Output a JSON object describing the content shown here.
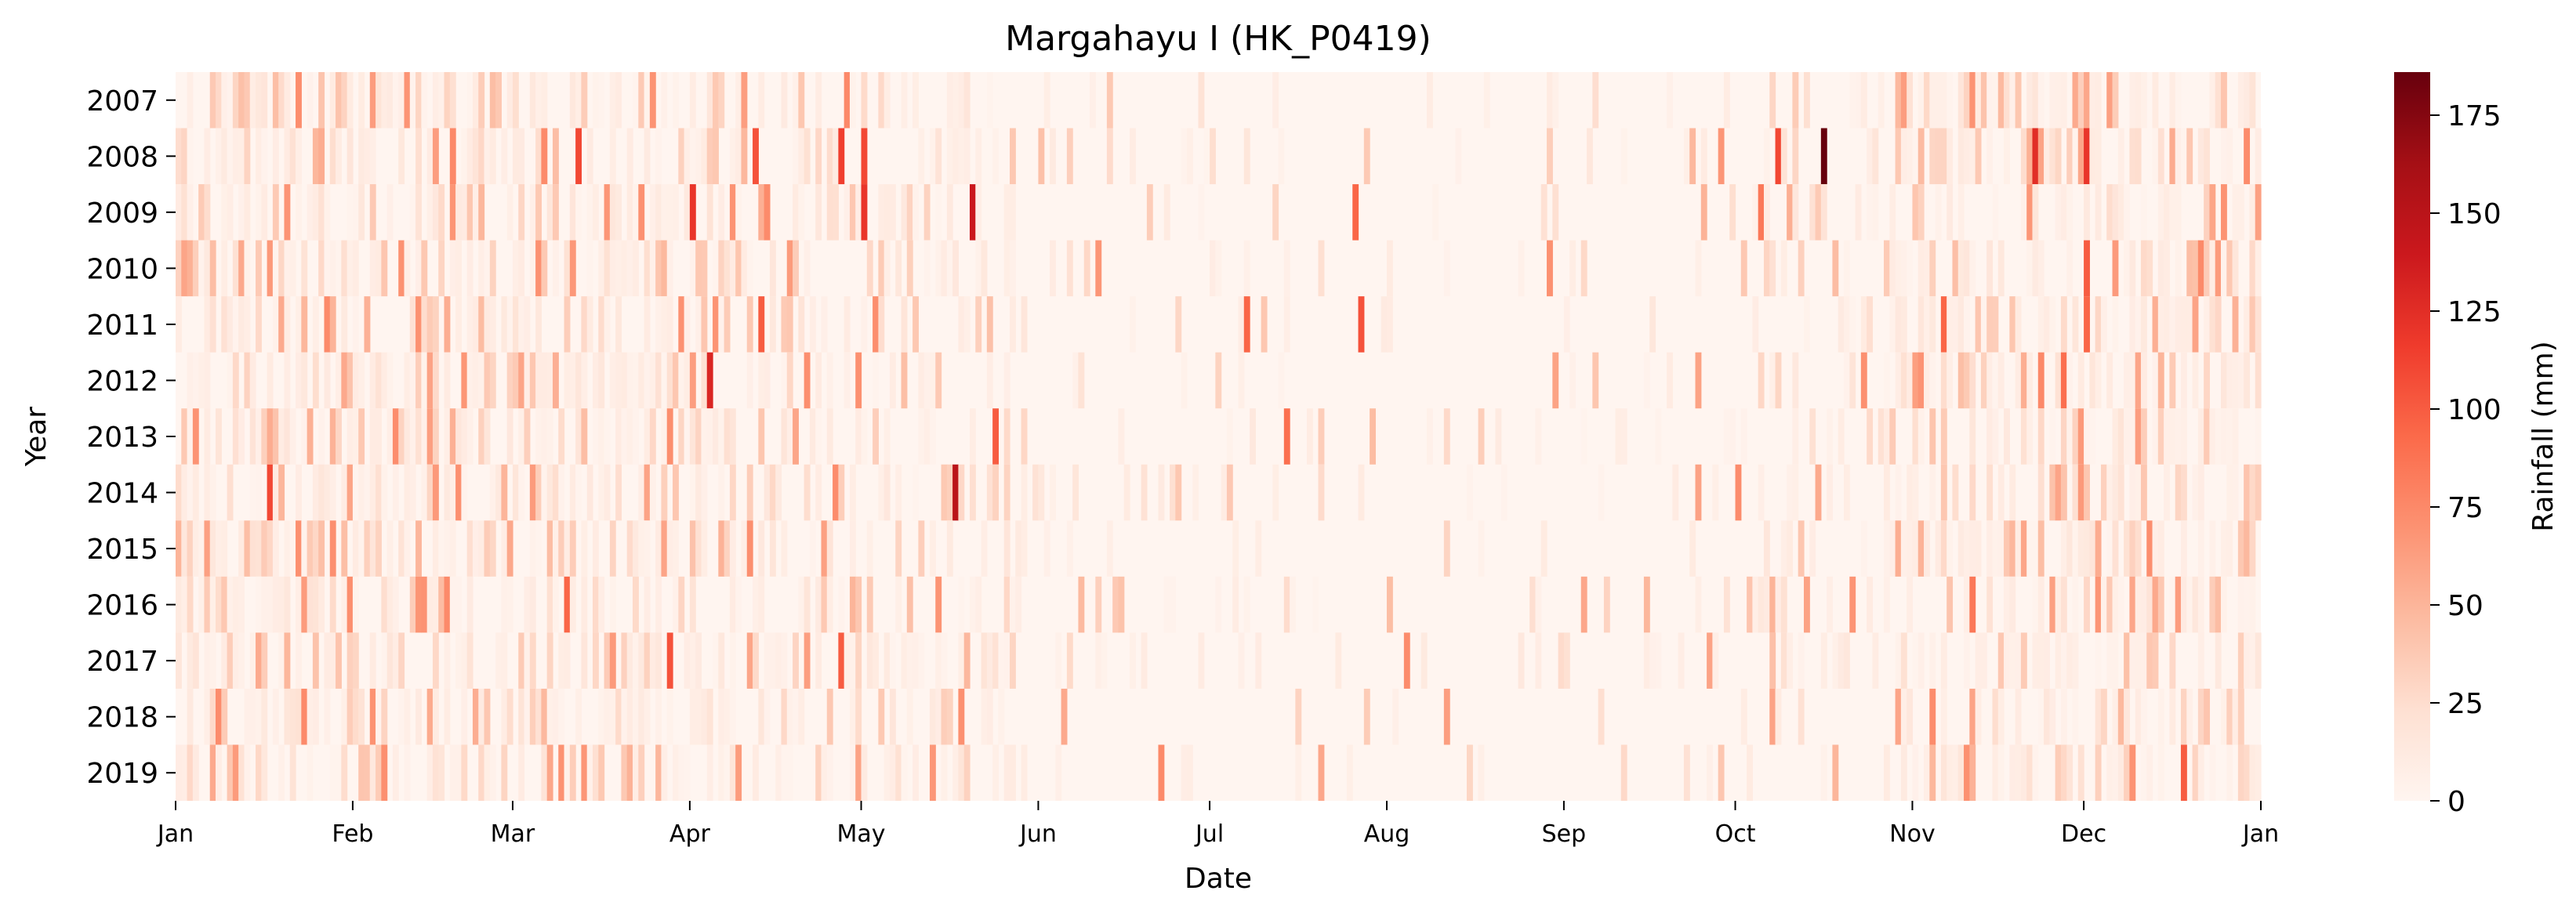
{
  "chart_data": {
    "type": "heatmap",
    "title": "Margahayu I (HK_P0419)",
    "xlabel": "Date",
    "ylabel": "Year",
    "years": [
      "2007",
      "2008",
      "2009",
      "2010",
      "2011",
      "2012",
      "2013",
      "2014",
      "2015",
      "2016",
      "2017",
      "2018",
      "2019"
    ],
    "x_ticks": [
      "Jan",
      "Feb",
      "Mar",
      "Apr",
      "May",
      "Jun",
      "Jul",
      "Aug",
      "Sep",
      "Oct",
      "Nov",
      "Dec",
      "Jan"
    ],
    "x_range_days": [
      1,
      366
    ],
    "colorbar": {
      "label": "Rainfall (mm)",
      "range": [
        0,
        186
      ],
      "ticks": [
        0,
        25,
        50,
        75,
        100,
        125,
        150,
        175
      ],
      "colormap": "Reds",
      "colors": [
        "#fff5f0",
        "#fee0d2",
        "#fcbba1",
        "#fc9272",
        "#fb6a4a",
        "#ef3b2c",
        "#cb181d",
        "#a50f15",
        "#67000d"
      ]
    },
    "notable_values": [
      {
        "year": "2008",
        "date": "Oct 16",
        "rainfall_mm": 186
      },
      {
        "year": "2008",
        "date": "Oct 8",
        "rainfall_mm": 110
      },
      {
        "year": "2008",
        "date": "Nov 22",
        "rainfall_mm": 125
      },
      {
        "year": "2008",
        "date": "Dec 1",
        "rainfall_mm": 120
      },
      {
        "year": "2008",
        "date": "Mar 12",
        "rainfall_mm": 110
      },
      {
        "year": "2008",
        "date": "Apr 12",
        "rainfall_mm": 105
      },
      {
        "year": "2008",
        "date": "Apr 27",
        "rainfall_mm": 115
      },
      {
        "year": "2008",
        "date": "May 1",
        "rainfall_mm": 110
      },
      {
        "year": "2009",
        "date": "May 20",
        "rainfall_mm": 140
      },
      {
        "year": "2009",
        "date": "May 1",
        "rainfall_mm": 120
      },
      {
        "year": "2009",
        "date": "Apr 1",
        "rainfall_mm": 120
      },
      {
        "year": "2009",
        "date": "Jul 26",
        "rainfall_mm": 95
      },
      {
        "year": "2009",
        "date": "Oct 5",
        "rainfall_mm": 85
      },
      {
        "year": "2010",
        "date": "Dec 1",
        "rainfall_mm": 100
      },
      {
        "year": "2011",
        "date": "Apr 13",
        "rainfall_mm": 100
      },
      {
        "year": "2011",
        "date": "Jul 27",
        "rainfall_mm": 105
      },
      {
        "year": "2011",
        "date": "Jul 7",
        "rainfall_mm": 95
      },
      {
        "year": "2011",
        "date": "Nov 6",
        "rainfall_mm": 95
      },
      {
        "year": "2011",
        "date": "Dec 1",
        "rainfall_mm": 95
      },
      {
        "year": "2012",
        "date": "Apr 4",
        "rainfall_mm": 130
      },
      {
        "year": "2012",
        "date": "Nov 27",
        "rainfall_mm": 90
      },
      {
        "year": "2013",
        "date": "May 24",
        "rainfall_mm": 100
      },
      {
        "year": "2013",
        "date": "Jul 14",
        "rainfall_mm": 90
      },
      {
        "year": "2014",
        "date": "May 17",
        "rainfall_mm": 150
      },
      {
        "year": "2014",
        "date": "Jan 17",
        "rainfall_mm": 110
      },
      {
        "year": "2016",
        "date": "Mar 10",
        "rainfall_mm": 95
      },
      {
        "year": "2016",
        "date": "Nov 11",
        "rainfall_mm": 85
      },
      {
        "year": "2017",
        "date": "Mar 28",
        "rainfall_mm": 105
      },
      {
        "year": "2017",
        "date": "Apr 27",
        "rainfall_mm": 100
      },
      {
        "year": "2017",
        "date": "Sep 26",
        "rainfall_mm": 60
      },
      {
        "year": "2019",
        "date": "Dec 18",
        "rainfall_mm": 100
      }
    ]
  }
}
